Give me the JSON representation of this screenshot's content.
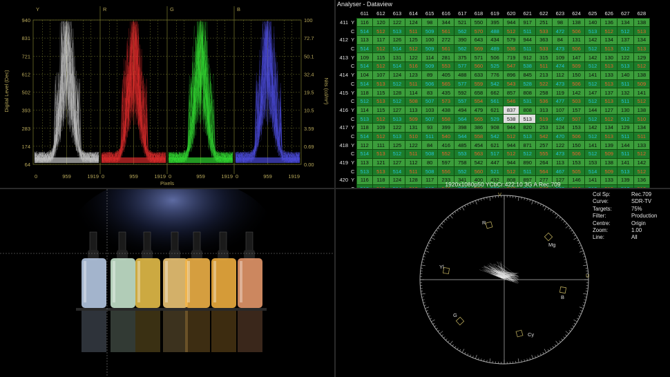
{
  "waveform": {
    "channels": [
      "Y",
      "R",
      "G",
      "B"
    ],
    "left_ticks": [
      "940",
      "831",
      "721",
      "612",
      "502",
      "393",
      "283",
      "174",
      "64"
    ],
    "right_ticks": [
      "100",
      "72.7",
      "50.1",
      "32.4",
      "19.5",
      "10.5",
      "3.59",
      "0.69",
      "0.00"
    ],
    "x_ticks": [
      "0",
      "959",
      "1919"
    ],
    "left_label": "Digital Level (Dec)",
    "right_label": "Nits (cd/m²)",
    "x_label": "Pixels",
    "trace_colors": [
      "#e8e8e8",
      "#ff3535",
      "#3cff3c",
      "#5a5aff"
    ]
  },
  "dataview": {
    "title": "Analyser - Dataview",
    "columns": [
      "611",
      "612",
      "613",
      "614",
      "615",
      "616",
      "617",
      "618",
      "619",
      "620",
      "621",
      "622",
      "623",
      "624",
      "625",
      "626",
      "627",
      "628"
    ],
    "rows": [
      {
        "label": "411",
        "y": [
          "116",
          "120",
          "122",
          "124",
          "98",
          "344",
          "521",
          "550",
          "395",
          "944",
          "917",
          "251",
          "98",
          "138",
          "140",
          "136",
          "134",
          "138"
        ],
        "c": [
          "514",
          "512",
          "513",
          "511",
          "509",
          "561",
          "562",
          "570",
          "488",
          "512",
          "511",
          "533",
          "472",
          "506",
          "513",
          "512",
          "512",
          "513"
        ]
      },
      {
        "label": "412",
        "y": [
          "113",
          "117",
          "126",
          "125",
          "100",
          "272",
          "390",
          "643",
          "434",
          "579",
          "944",
          "363",
          "84",
          "131",
          "142",
          "134",
          "137",
          "134"
        ],
        "c": [
          "514",
          "512",
          "514",
          "512",
          "509",
          "561",
          "562",
          "569",
          "489",
          "536",
          "511",
          "533",
          "473",
          "506",
          "512",
          "513",
          "512",
          "513"
        ]
      },
      {
        "label": "413",
        "y": [
          "109",
          "115",
          "131",
          "122",
          "114",
          "281",
          "375",
          "571",
          "506",
          "719",
          "912",
          "315",
          "109",
          "147",
          "142",
          "130",
          "122",
          "129"
        ],
        "c": [
          "514",
          "512",
          "514",
          "516",
          "509",
          "553",
          "577",
          "560",
          "525",
          "547",
          "538",
          "511",
          "474",
          "509",
          "512",
          "513",
          "513",
          "512"
        ]
      },
      {
        "label": "414",
        "y": [
          "104",
          "107",
          "124",
          "123",
          "89",
          "405",
          "488",
          "633",
          "776",
          "896",
          "845",
          "213",
          "112",
          "150",
          "141",
          "133",
          "140",
          "138"
        ],
        "c": [
          "514",
          "513",
          "512",
          "511",
          "506",
          "565",
          "577",
          "559",
          "542",
          "543",
          "528",
          "522",
          "473",
          "506",
          "512",
          "513",
          "511",
          "509"
        ]
      },
      {
        "label": "415",
        "y": [
          "118",
          "115",
          "128",
          "114",
          "83",
          "435",
          "592",
          "658",
          "662",
          "857",
          "808",
          "258",
          "119",
          "142",
          "147",
          "137",
          "132",
          "141"
        ],
        "c": [
          "512",
          "513",
          "512",
          "508",
          "507",
          "573",
          "557",
          "554",
          "561",
          "546",
          "531",
          "536",
          "477",
          "503",
          "512",
          "513",
          "511",
          "512"
        ]
      },
      {
        "label": "416",
        "y": [
          "114",
          "115",
          "127",
          "113",
          "103",
          "438",
          "494",
          "479",
          "621",
          "837",
          "808",
          "313",
          "107",
          "157",
          "144",
          "127",
          "130",
          "138"
        ],
        "c": [
          "513",
          "512",
          "513",
          "509",
          "507",
          "558",
          "564",
          "565",
          "529",
          "538",
          "513",
          "519",
          "467",
          "507",
          "512",
          "512",
          "512",
          "510"
        ]
      },
      {
        "label": "417",
        "y": [
          "118",
          "109",
          "122",
          "131",
          "93",
          "399",
          "398",
          "386",
          "908",
          "944",
          "820",
          "253",
          "124",
          "153",
          "142",
          "134",
          "129",
          "134"
        ],
        "c": [
          "514",
          "512",
          "513",
          "510",
          "511",
          "540",
          "544",
          "558",
          "542",
          "512",
          "513",
          "542",
          "470",
          "506",
          "512",
          "513",
          "511",
          "511"
        ]
      },
      {
        "label": "418",
        "y": [
          "112",
          "111",
          "125",
          "122",
          "84",
          "416",
          "485",
          "454",
          "621",
          "944",
          "871",
          "257",
          "122",
          "150",
          "141",
          "139",
          "144",
          "133"
        ],
        "c": [
          "514",
          "513",
          "512",
          "511",
          "508",
          "552",
          "553",
          "563",
          "517",
          "512",
          "512",
          "555",
          "473",
          "506",
          "512",
          "509",
          "511",
          "512"
        ]
      },
      {
        "label": "419",
        "y": [
          "113",
          "121",
          "127",
          "112",
          "80",
          "597",
          "758",
          "542",
          "447",
          "944",
          "890",
          "264",
          "113",
          "153",
          "153",
          "138",
          "141",
          "142"
        ],
        "c": [
          "513",
          "513",
          "514",
          "511",
          "508",
          "556",
          "552",
          "560",
          "521",
          "512",
          "511",
          "564",
          "467",
          "505",
          "514",
          "509",
          "513",
          "512"
        ]
      },
      {
        "label": "420",
        "y": [
          "116",
          "118",
          "124",
          "128",
          "117",
          "233",
          "341",
          "400",
          "432",
          "808",
          "897",
          "277",
          "127",
          "146",
          "141",
          "133",
          "139",
          "136"
        ],
        "c": [
          "513",
          "513",
          "514",
          "513",
          "512",
          "543",
          "550",
          "551",
          "532",
          "542",
          "513",
          "547",
          "508",
          "512",
          "512",
          "512",
          "512",
          "513"
        ]
      }
    ],
    "highlight": [
      "416-Y-620",
      "416-C-620",
      "416-C-621"
    ],
    "footer": "1920x1080p50 YCbCr:422:10 3G A Rec.709"
  },
  "vectorscope": {
    "info": [
      {
        "k": "Col Sp:",
        "v": "Rec.709"
      },
      {
        "k": "Curve:",
        "v": "SDR-TV"
      },
      {
        "k": "Targets:",
        "v": "75%"
      },
      {
        "k": "Filter:",
        "v": "Production"
      },
      {
        "k": "Centre:",
        "v": "Origin"
      },
      {
        "k": "Zoom:",
        "v": "1.00"
      },
      {
        "k": "Line:",
        "v": "All"
      }
    ],
    "axis_labels": {
      "V": "V",
      "U": "U"
    },
    "targets": [
      "R",
      "Mg",
      "B",
      "Cy",
      "G",
      "Yl"
    ]
  },
  "colors": {
    "grid": "#6e6f2a",
    "label": "#b8a85a",
    "cell_y": "#3b9d3b",
    "cell_c": "#1c7c2a"
  }
}
